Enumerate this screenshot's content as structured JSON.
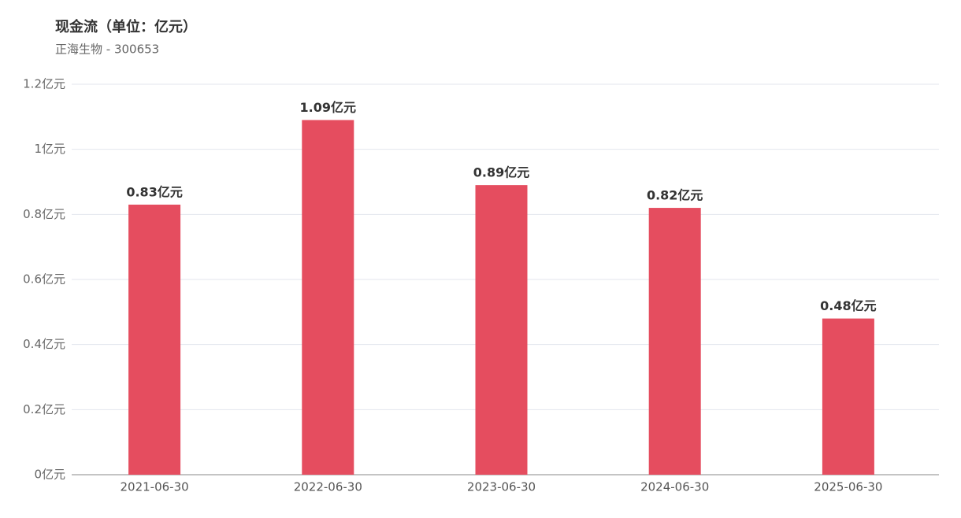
{
  "chart_data": {
    "type": "bar",
    "title": "现金流（单位：亿元）",
    "subtitle": "正海生物 - 300653",
    "categories": [
      "2021-06-30",
      "2022-06-30",
      "2023-06-30",
      "2024-06-30",
      "2025-06-30"
    ],
    "values": [
      0.83,
      1.09,
      0.89,
      0.82,
      0.48
    ],
    "value_labels": [
      "0.83亿元",
      "1.09亿元",
      "0.89亿元",
      "0.82亿元",
      "0.48亿元"
    ],
    "color": "#e54d5f",
    "ylim": [
      0,
      1.2
    ],
    "yticks": [
      {
        "value": 0,
        "label": "0亿元"
      },
      {
        "value": 0.2,
        "label": "0.2亿元"
      },
      {
        "value": 0.4,
        "label": "0.4亿元"
      },
      {
        "value": 0.6,
        "label": "0.6亿元"
      },
      {
        "value": 0.8,
        "label": "0.8亿元"
      },
      {
        "value": 1,
        "label": "1亿元"
      },
      {
        "value": 1.2,
        "label": "1.2亿元"
      }
    ],
    "grid": true
  }
}
